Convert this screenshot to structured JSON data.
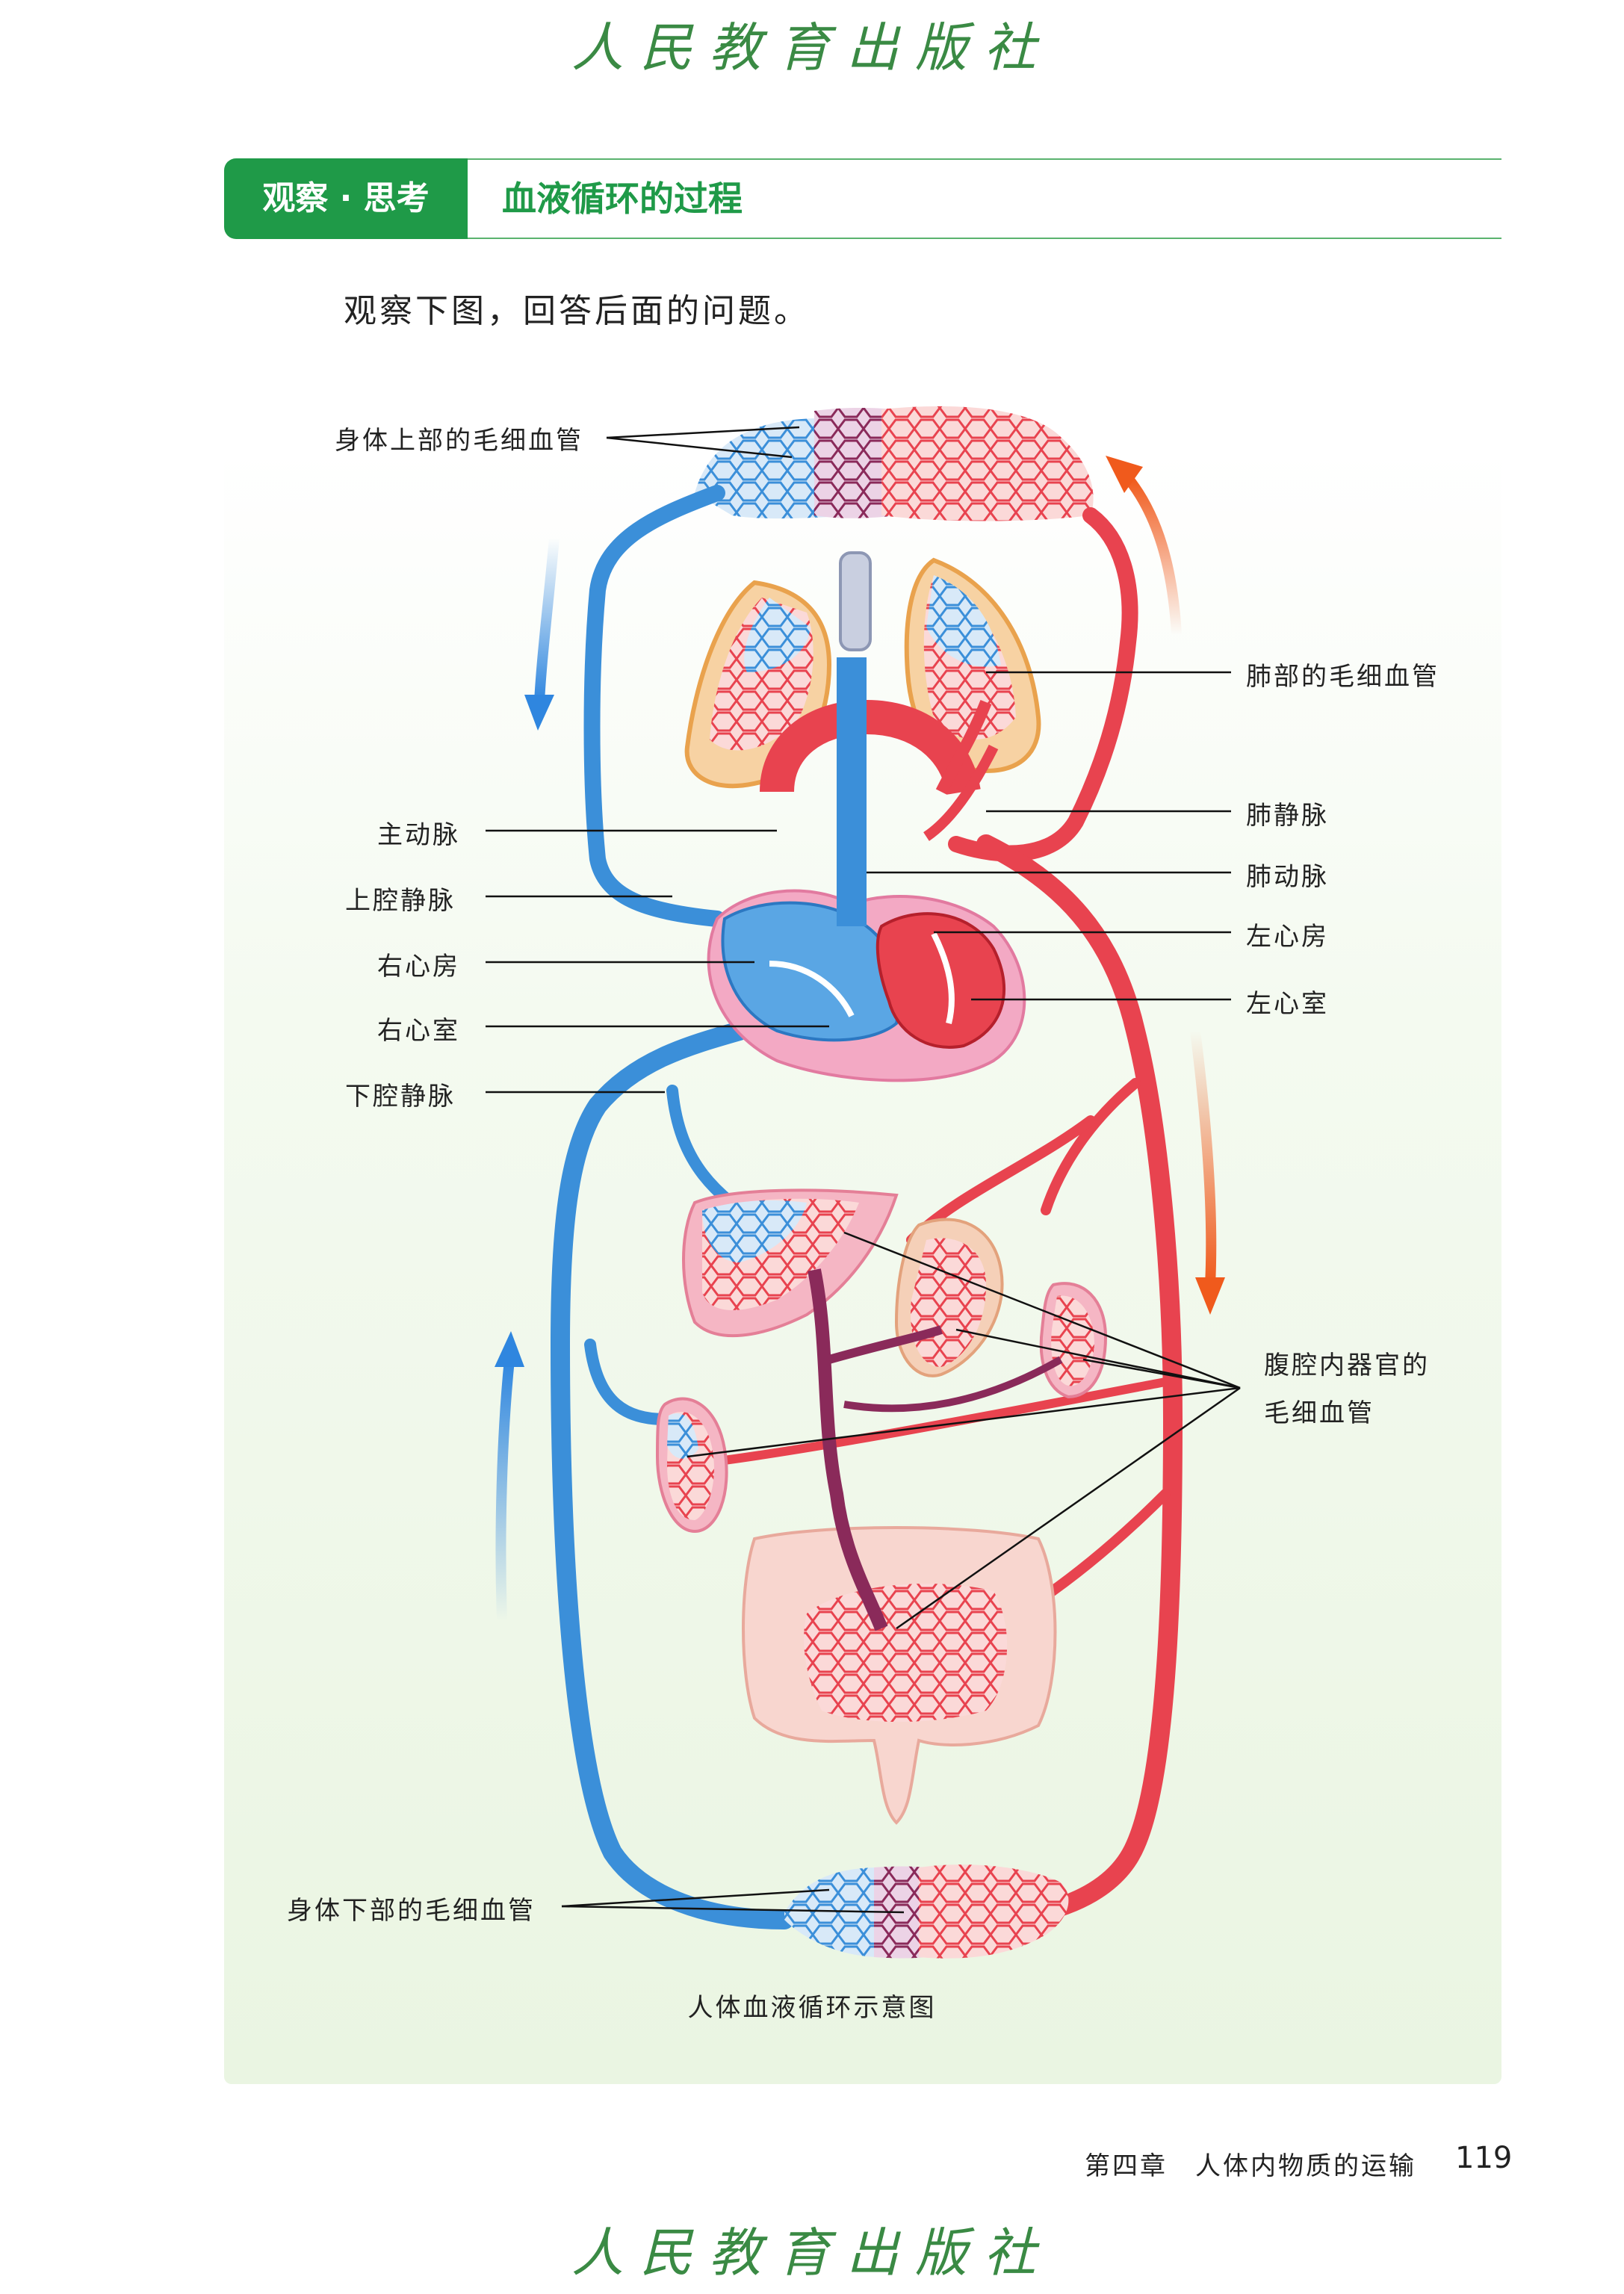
{
  "watermark": "人民教育出版社",
  "header": {
    "tab_label": "观察 · 思考",
    "title": "血液循环的过程"
  },
  "intro": "观察下图，回答后面的问题。",
  "figure": {
    "caption": "人体血液循环示意图",
    "labels": {
      "upper_capillaries": "身体上部的毛细血管",
      "lung_capillaries": "肺部的毛细血管",
      "pulmonary_vein": "肺静脉",
      "aorta": "主动脉",
      "pulmonary_artery": "肺动脉",
      "superior_vena_cava": "上腔静脉",
      "left_atrium": "左心房",
      "right_atrium": "右心房",
      "left_ventricle": "左心室",
      "right_ventricle": "右心室",
      "inferior_vena_cava": "下腔静脉",
      "abdominal_capillaries_1": "腹腔内器官的",
      "abdominal_capillaries_2": "毛细血管",
      "lower_capillaries": "身体下部的毛细血管"
    },
    "colors": {
      "artery": "#e8434f",
      "vein": "#3b8fd9",
      "arrow_red": "#f05a1c",
      "arrow_blue": "#2f86df"
    }
  },
  "footer": {
    "chapter": "第四章　人体内物质的运输",
    "page": "119"
  }
}
